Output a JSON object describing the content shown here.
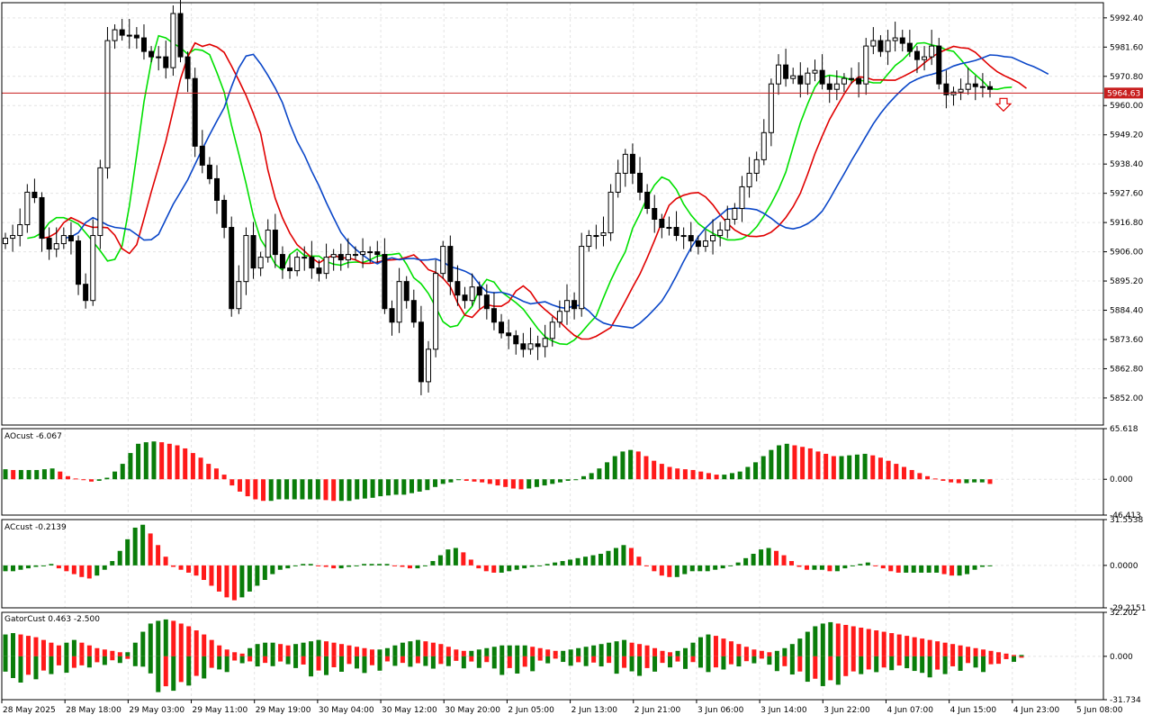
{
  "colors": {
    "bull_bar": "#0a7d0a",
    "bear_bar": "#ff1a1a",
    "ma_fast": "#00e000",
    "ma_mid": "#e00000",
    "ma_slow": "#0a46c8",
    "price_line": "#c81e1e",
    "grid": "#e4e4e4",
    "frame": "#000000",
    "price_tag_bg": "#c81e1e"
  },
  "chart_data": [
    {
      "type": "candlestick",
      "panel": "main",
      "ylim": [
        5842,
        5998
      ],
      "y_ticks": [
        "5992.40",
        "5981.60",
        "5970.80",
        "5960.00",
        "5949.20",
        "5938.40",
        "5927.60",
        "5916.80",
        "5906.00",
        "5895.20",
        "5884.40",
        "5873.60",
        "5862.80",
        "5852.00"
      ],
      "current_price_label": "5964.63",
      "current_price": 5964.63,
      "x_tick_labels": [
        "28 May 2025",
        "28 May 18:00",
        "29 May 03:00",
        "29 May 11:00",
        "29 May 19:00",
        "30 May 04:00",
        "30 May 12:00",
        "30 May 20:00",
        "2 Jun 05:00",
        "2 Jun 13:00",
        "2 Jun 21:00",
        "3 Jun 06:00",
        "3 Jun 14:00",
        "3 Jun 22:00",
        "4 Jun 07:00",
        "4 Jun 15:00",
        "4 Jun 23:00",
        "5 Jun 08:00"
      ],
      "close_estimates": [
        5911,
        5912,
        5916,
        5928,
        5926,
        5911,
        5907,
        5909,
        5912,
        5910,
        5894,
        5888,
        5912,
        5937,
        5984,
        5988,
        5986,
        5986,
        5985,
        5980,
        5978,
        5978,
        5974,
        5994,
        5978,
        5970,
        5945,
        5938,
        5933,
        5925,
        5915,
        5885,
        5895,
        5912,
        5900,
        5904,
        5914,
        5905,
        5900,
        5899,
        5904,
        5904,
        5900,
        5898,
        5904,
        5905,
        5903,
        5905,
        5905,
        5906,
        5906,
        5905,
        5885,
        5880,
        5895,
        5888,
        5880,
        5858,
        5870,
        5898,
        5908,
        5895,
        5890,
        5888,
        5893,
        5890,
        5885,
        5880,
        5876,
        5875,
        5872,
        5870,
        5872,
        5871,
        5874,
        5880,
        5884,
        5888,
        5885,
        5908,
        5912,
        5912,
        5913,
        5928,
        5935,
        5942,
        5935,
        5928,
        5922,
        5918,
        5915,
        5915,
        5912,
        5912,
        5910,
        5908,
        5910,
        5912,
        5914,
        5918,
        5922,
        5930,
        5935,
        5940,
        5950,
        5968,
        5975,
        5970,
        5971,
        5968,
        5972,
        5973,
        5968,
        5966,
        5968,
        5970,
        5970,
        5968,
        5982,
        5984,
        5980,
        5984,
        5985,
        5983,
        5980,
        5977,
        5978,
        5982,
        5968,
        5964,
        5965,
        5966,
        5968,
        5967,
        5967,
        5966
      ]
    },
    {
      "type": "bar",
      "panel": "AOcust",
      "label": "AOcust -6.067",
      "ylim": [
        -46.413,
        65.618
      ],
      "y_ticks": [
        "65.618",
        "0.000",
        "-46.413"
      ],
      "values": [
        13,
        12,
        12,
        12,
        12,
        13,
        14,
        10,
        4,
        1,
        -1,
        -3,
        -2,
        2,
        10,
        20,
        34,
        46,
        48,
        49,
        48,
        46,
        44,
        40,
        34,
        28,
        20,
        14,
        6,
        -8,
        -16,
        -22,
        -26,
        -28,
        -28,
        -26,
        -26,
        -26,
        -26,
        -26,
        -26,
        -27,
        -28,
        -28,
        -28,
        -26,
        -25,
        -24,
        -22,
        -21,
        -20,
        -20,
        -18,
        -16,
        -14,
        -10,
        -6,
        -4,
        -1,
        -2,
        -3,
        -4,
        -6,
        -8,
        -10,
        -12,
        -13,
        -12,
        -10,
        -8,
        -6,
        -4,
        -2,
        0,
        4,
        8,
        14,
        22,
        30,
        36,
        38,
        36,
        30,
        24,
        20,
        16,
        14,
        13,
        12,
        10,
        8,
        6,
        6,
        8,
        10,
        16,
        22,
        30,
        38,
        44,
        46,
        44,
        42,
        40,
        36,
        33,
        30,
        30,
        31,
        32,
        33,
        31,
        28,
        24,
        20,
        16,
        12,
        8,
        4,
        1,
        -2,
        -4,
        -5,
        -5,
        -4,
        -4,
        -6
      ]
    },
    {
      "type": "bar",
      "panel": "ACcust",
      "label": "ACcust -0.2139",
      "ylim": [
        -29.2151,
        31.5538
      ],
      "y_ticks": [
        "31.5538",
        "0.0000",
        "-29.2151"
      ],
      "values": [
        -4,
        -4,
        -3,
        -2,
        -1,
        0,
        1,
        -2,
        -4,
        -6,
        -8,
        -9,
        -7,
        -3,
        3,
        10,
        18,
        26,
        28,
        22,
        14,
        6,
        -1,
        -3,
        -5,
        -7,
        -10,
        -14,
        -18,
        -22,
        -24,
        -22,
        -18,
        -14,
        -10,
        -6,
        -3,
        -2,
        0,
        1,
        1,
        0,
        -1,
        -2,
        -2,
        -1,
        0,
        1,
        1,
        1,
        1,
        0,
        -1,
        -2,
        -2,
        0,
        3,
        7,
        11,
        12,
        9,
        4,
        -2,
        -4,
        -5,
        -5,
        -4,
        -3,
        -2,
        -1,
        0,
        1,
        2,
        3,
        4,
        5,
        6,
        7,
        8,
        10,
        12,
        14,
        12,
        6,
        0,
        -4,
        -7,
        -8,
        -8,
        -6,
        -4,
        -4,
        -4,
        -3,
        -2,
        0,
        2,
        5,
        8,
        11,
        12,
        10,
        7,
        3,
        -1,
        -3,
        -3,
        -3,
        -4,
        -4,
        -2,
        0,
        1,
        2,
        0,
        -2,
        -4,
        -5,
        -5,
        -5,
        -5,
        -5,
        -5,
        -6,
        -7,
        -7,
        -6,
        -3,
        -1,
        0
      ]
    },
    {
      "type": "histogram",
      "panel": "GatorCust",
      "label": "GatorCust 0.463 -2.500",
      "ylim": [
        -31.734,
        32.202
      ],
      "y_ticks": [
        "32.202",
        "0.000",
        "-31.734"
      ],
      "upper_values": [
        16,
        17,
        16,
        15,
        14,
        12,
        10,
        8,
        10,
        12,
        10,
        8,
        6,
        5,
        4,
        3,
        3,
        10,
        18,
        24,
        26,
        27,
        26,
        24,
        22,
        19,
        16,
        12,
        8,
        5,
        3,
        2,
        6,
        9,
        10,
        10,
        9,
        8,
        9,
        10,
        11,
        12,
        11,
        10,
        9,
        8,
        7,
        6,
        5,
        5,
        6,
        8,
        10,
        11,
        12,
        11,
        10,
        9,
        7,
        5,
        4,
        4,
        5,
        6,
        7,
        8,
        8,
        8,
        8,
        7,
        6,
        5,
        4,
        4,
        5,
        6,
        7,
        8,
        9,
        10,
        11,
        12,
        10,
        9,
        8,
        6,
        4,
        3,
        4,
        6,
        10,
        14,
        16,
        15,
        13,
        11,
        9,
        7,
        5,
        4,
        3,
        4,
        6,
        9,
        13,
        18,
        22,
        24,
        25,
        24,
        23,
        22,
        21,
        20,
        19,
        18,
        17,
        16,
        15,
        14,
        13,
        12,
        11,
        10,
        9,
        8,
        7,
        6,
        5,
        4,
        3,
        2,
        1,
        1
      ]
    }
  ]
}
